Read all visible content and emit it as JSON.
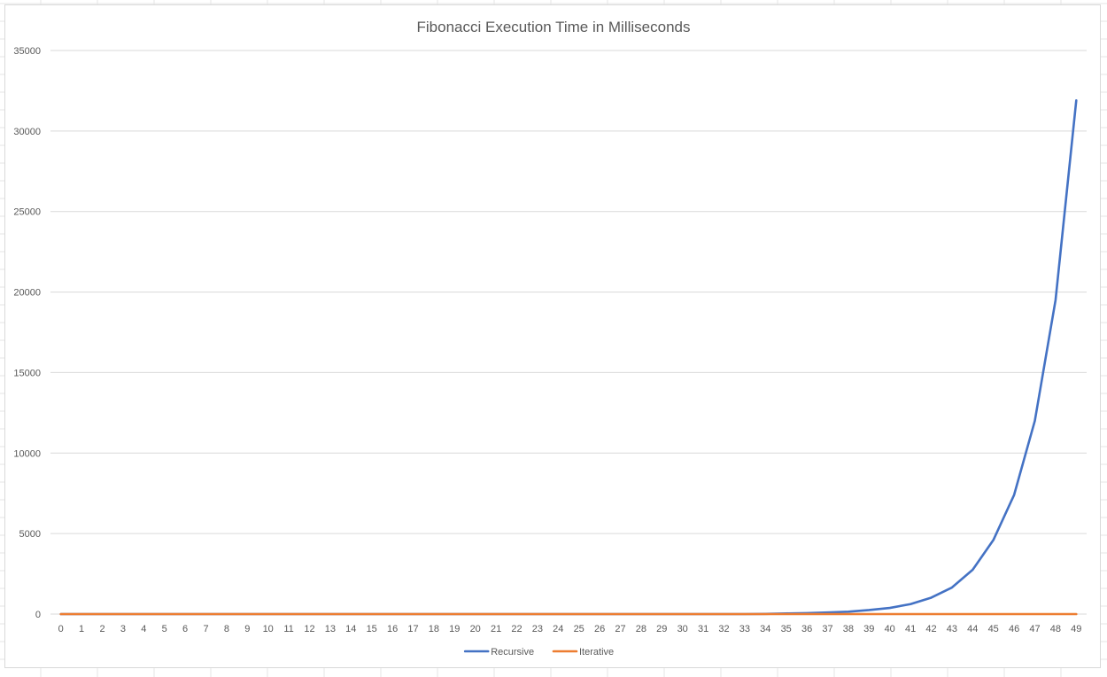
{
  "chart_data": {
    "type": "line",
    "title": "Fibonacci Execution Time in Milliseconds",
    "xlabel": "",
    "ylabel": "",
    "ylim": [
      0,
      35000
    ],
    "yticks": [
      0,
      5000,
      10000,
      15000,
      20000,
      25000,
      30000,
      35000
    ],
    "grid": true,
    "legend_position": "bottom",
    "categories": [
      "0",
      "1",
      "2",
      "3",
      "4",
      "5",
      "6",
      "7",
      "8",
      "9",
      "10",
      "11",
      "12",
      "13",
      "14",
      "15",
      "16",
      "17",
      "18",
      "19",
      "20",
      "21",
      "22",
      "23",
      "24",
      "25",
      "26",
      "27",
      "28",
      "29",
      "30",
      "31",
      "32",
      "33",
      "34",
      "35",
      "36",
      "37",
      "38",
      "39",
      "40",
      "41",
      "42",
      "43",
      "44",
      "45",
      "46",
      "47",
      "48",
      "49"
    ],
    "series": [
      {
        "name": "Recursive",
        "color": "#4472c4",
        "values": [
          0,
          0,
          0,
          0,
          0,
          0,
          0,
          0,
          0,
          0,
          0,
          0,
          0,
          0,
          0,
          0,
          0,
          0,
          0,
          0,
          0,
          0,
          0,
          0,
          0,
          0,
          0,
          0,
          0,
          0,
          0,
          0,
          0,
          0,
          10,
          40,
          60,
          100,
          150,
          250,
          380,
          620,
          1020,
          1650,
          2750,
          4600,
          7400,
          12000,
          19500,
          31900
        ]
      },
      {
        "name": "Iterative",
        "color": "#ed7d31",
        "values": [
          0,
          0,
          0,
          0,
          0,
          0,
          0,
          0,
          0,
          0,
          0,
          0,
          0,
          0,
          0,
          0,
          0,
          0,
          0,
          0,
          0,
          0,
          0,
          0,
          0,
          0,
          0,
          0,
          0,
          0,
          0,
          0,
          0,
          0,
          0,
          0,
          0,
          0,
          0,
          0,
          0,
          0,
          0,
          0,
          0,
          0,
          0,
          0,
          0,
          0
        ]
      }
    ]
  }
}
